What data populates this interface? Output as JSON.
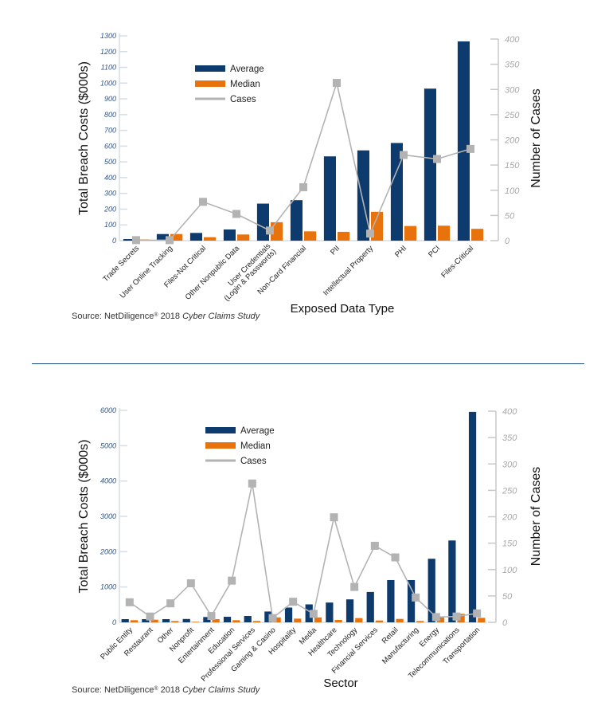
{
  "colors": {
    "average": "#0d3b6e",
    "median": "#e8720c",
    "cases": "#b3b3b3",
    "left_tick": "#2f5688",
    "right_tick": "#a8a8a8",
    "divider": "#1a4a80"
  },
  "chart_data": [
    {
      "type": "bar",
      "xlabel": "Exposed Data Type",
      "ylabel": "Total Breach Costs ($000s)",
      "y2label": "Number of Cases",
      "ylim": [
        0,
        1300
      ],
      "yticks": [
        0,
        100,
        200,
        300,
        400,
        500,
        600,
        700,
        800,
        900,
        1000,
        1100,
        1200,
        1300
      ],
      "y2lim": [
        0,
        400
      ],
      "y2ticks": [
        0,
        50,
        100,
        150,
        200,
        250,
        300,
        350,
        400
      ],
      "legend_position": "top-left",
      "categories": [
        "Trade Secrets",
        "User Online Tracking",
        "Files-Not Critical",
        "Other Nonpublic Data",
        "User Credentials\n(Login & Passwords)",
        "Non-Card Financial",
        "PII",
        "Intellectual Property",
        "PHI",
        "PCI",
        "Files-Critical"
      ],
      "series": [
        {
          "name": "Average",
          "type": "bar",
          "axis": "left",
          "values": [
            10,
            42,
            49,
            71,
            235,
            257,
            535,
            573,
            620,
            965,
            1265
          ]
        },
        {
          "name": "Median",
          "type": "bar",
          "axis": "left",
          "values": [
            8,
            42,
            22,
            39,
            117,
            59,
            56,
            183,
            93,
            95,
            75
          ]
        },
        {
          "name": "Cases",
          "type": "line",
          "axis": "right",
          "values": [
            1,
            1,
            77,
            53,
            20,
            106,
            313,
            14,
            170,
            162,
            182
          ]
        }
      ],
      "source_prefix": "Source: NetDiligence",
      "source_reg": "®",
      "source_mid": " 2018 ",
      "source_italic": "Cyber Claims Study"
    },
    {
      "type": "bar",
      "xlabel": "Sector",
      "ylabel": "Total Breach Costs ($000s)",
      "y2label": "Number of Cases",
      "ylim": [
        0,
        6000
      ],
      "yticks": [
        0,
        1000,
        2000,
        3000,
        4000,
        5000,
        6000
      ],
      "y2lim": [
        0,
        400
      ],
      "y2ticks": [
        0,
        50,
        100,
        150,
        200,
        250,
        300,
        350,
        400
      ],
      "legend_position": "top-left",
      "categories": [
        "Public Entity",
        "Restaurant",
        "Other",
        "Nonprofit",
        "Entertainment",
        "Education",
        "Professional Services",
        "Gaming & Casino",
        "Hospitality",
        "Media",
        "Healthcare",
        "Technology",
        "Financial Services",
        "Retail",
        "Manufacturing",
        "Energy",
        "Telecommunications",
        "Transportation"
      ],
      "series": [
        {
          "name": "Average",
          "type": "bar",
          "axis": "left",
          "values": [
            90,
            90,
            90,
            95,
            150,
            157,
            180,
            306,
            418,
            508,
            560,
            650,
            860,
            1196,
            1196,
            1800,
            2317,
            5957
          ]
        },
        {
          "name": "Median",
          "type": "bar",
          "axis": "left",
          "values": [
            60,
            75,
            37,
            15,
            90,
            60,
            37,
            140,
            105,
            140,
            67,
            120,
            52,
            97,
            37,
            140,
            240,
            127
          ]
        },
        {
          "name": "Cases",
          "type": "line",
          "axis": "right",
          "values": [
            38,
            11,
            36,
            74,
            12,
            79,
            263,
            8,
            39,
            16,
            199,
            67,
            145,
            123,
            47,
            10,
            11,
            17
          ]
        }
      ],
      "source_prefix": "Source: NetDiligence",
      "source_reg": "®",
      "source_mid": " 2018 ",
      "source_italic": "Cyber Claims Study"
    }
  ]
}
